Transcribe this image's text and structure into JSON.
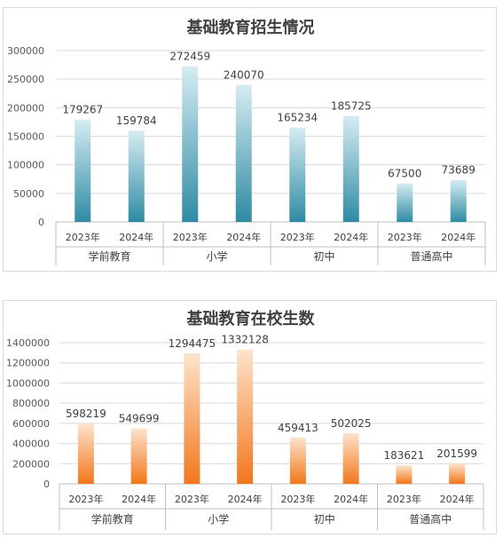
{
  "chart_data": [
    {
      "type": "bar",
      "title": "基础教育招生情况",
      "groups": [
        "学前教育",
        "小学",
        "初中",
        "普通高中"
      ],
      "categories": [
        "2023年",
        "2024年",
        "2023年",
        "2024年",
        "2023年",
        "2024年",
        "2023年",
        "2024年"
      ],
      "values": [
        179267,
        159784,
        272459,
        240070,
        165234,
        185725,
        67500,
        73689
      ],
      "yticks": [
        "0",
        "50000",
        "100000",
        "150000",
        "200000",
        "250000",
        "300000"
      ],
      "ylim": [
        0,
        300000
      ],
      "grid": true,
      "colors": {
        "top": "#d6ecf2",
        "bottom": "#2e8ba3"
      }
    },
    {
      "type": "bar",
      "title": "基础教育在校生数",
      "groups": [
        "学前教育",
        "小学",
        "初中",
        "普通高中"
      ],
      "categories": [
        "2023年",
        "2024年",
        "2023年",
        "2024年",
        "2023年",
        "2024年",
        "2023年",
        "2024年"
      ],
      "values": [
        598219,
        549699,
        1294475,
        1332128,
        459413,
        502025,
        183621,
        201599
      ],
      "yticks": [
        "0",
        "200000",
        "400000",
        "600000",
        "800000",
        "1000000",
        "1200000",
        "1400000"
      ],
      "ylim": [
        0,
        1400000
      ],
      "grid": true,
      "colors": {
        "top": "#fde3cc",
        "bottom": "#f2771b"
      }
    }
  ]
}
